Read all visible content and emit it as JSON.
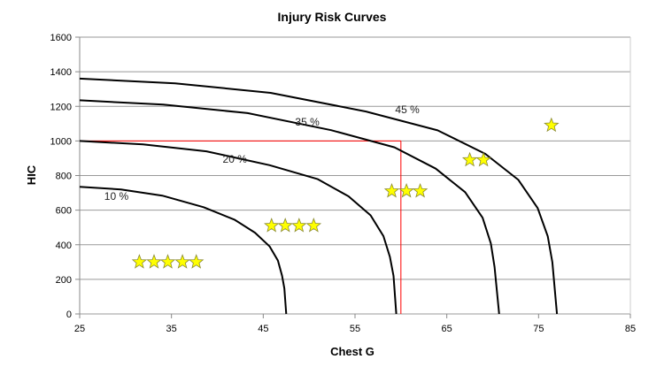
{
  "chart_data": {
    "type": "line",
    "title": "Injury Risk Curves",
    "xlabel": "Chest G",
    "ylabel": "HIC",
    "xlim": [
      25,
      85
    ],
    "ylim": [
      0,
      1600
    ],
    "xticks": [
      25,
      35,
      45,
      55,
      65,
      75,
      85
    ],
    "yticks": [
      0,
      200,
      400,
      600,
      800,
      1000,
      1200,
      1400,
      1600
    ],
    "grid": "horizontal",
    "series": [
      {
        "name": "10 %",
        "label_at": [
          29,
          660
        ],
        "color": "#000000",
        "x": [
          25,
          29.5,
          34,
          38.5,
          41.9,
          44.1,
          45.7,
          46.6,
          47.05,
          47.3,
          47.5
        ],
        "y": [
          735,
          720,
          684,
          617,
          544,
          470,
          390,
          309,
          221,
          147,
          0
        ]
      },
      {
        "name": "20 %",
        "label_at": [
          41.9,
          875
        ],
        "color": "#000000",
        "x": [
          25,
          31.9,
          38.8,
          45.7,
          50.9,
          54.3,
          56.7,
          58.1,
          58.8,
          59.2,
          59.5
        ],
        "y": [
          1000,
          980,
          940,
          860,
          780,
          680,
          570,
          450,
          330,
          220,
          0
        ]
      },
      {
        "name": "35 %",
        "label_at": [
          49.8,
          1090
        ],
        "color": "#000000",
        "x": [
          25,
          34.1,
          43.3,
          52.4,
          59.3,
          63.8,
          67.0,
          68.9,
          69.8,
          70.2,
          70.7
        ],
        "y": [
          1235,
          1210,
          1161,
          1062,
          963,
          840,
          704,
          556,
          408,
          272,
          0
        ]
      },
      {
        "name": "45 %",
        "label_at": [
          60.7,
          1160
        ],
        "color": "#000000",
        "x": [
          25,
          35.4,
          45.8,
          56.2,
          64,
          69.2,
          72.8,
          74.9,
          76,
          76.5,
          77
        ],
        "y": [
          1360,
          1333,
          1278,
          1170,
          1061,
          925,
          775,
          612,
          449,
          299,
          0
        ]
      }
    ],
    "reference_lines": {
      "color": "#ff0000",
      "x": 60,
      "y": 1000
    },
    "star_groups": [
      {
        "stars": 5,
        "y": 300,
        "x": [
          31.5,
          33.1,
          34.6,
          36.2,
          37.7
        ]
      },
      {
        "stars": 4,
        "y": 510,
        "x": [
          45.9,
          47.4,
          48.9,
          50.5
        ]
      },
      {
        "stars": 3,
        "y": 710,
        "x": [
          59.0,
          60.6,
          62.1
        ]
      },
      {
        "stars": 2,
        "y": 890,
        "x": [
          67.5,
          69.0
        ]
      },
      {
        "stars": 1,
        "y": 1090,
        "x": [
          76.4
        ]
      }
    ],
    "star_color": "#ffff00"
  }
}
